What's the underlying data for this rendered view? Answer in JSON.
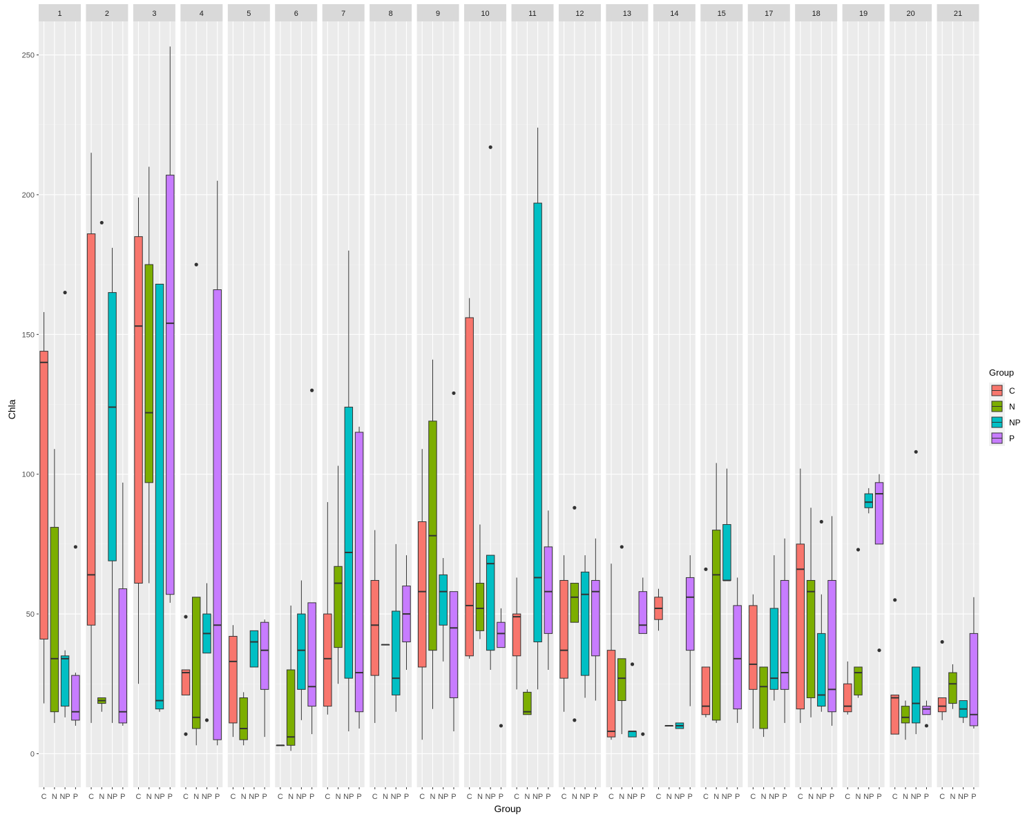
{
  "chart_data": {
    "type": "boxplot",
    "facet_by": "panel",
    "xlabel": "Group",
    "ylabel": "Chla",
    "ylim": [
      -12,
      262
    ],
    "y_ticks": [
      0,
      50,
      100,
      150,
      200,
      250
    ],
    "categories": [
      "C",
      "N",
      "NP",
      "P"
    ],
    "legend": {
      "title": "Group",
      "placement": "right",
      "items": [
        {
          "label": "C",
          "color": "#F8766D"
        },
        {
          "label": "N",
          "color": "#7CAE00"
        },
        {
          "label": "NP",
          "color": "#00BFC4"
        },
        {
          "label": "P",
          "color": "#C77CFF"
        }
      ]
    },
    "panels": [
      {
        "label": "1",
        "boxes": [
          {
            "group": "C",
            "lower": 18,
            "q1": 41,
            "median": 140,
            "q3": 144,
            "upper": 158,
            "outliers": []
          },
          {
            "group": "N",
            "lower": 11,
            "q1": 15,
            "median": 34,
            "q3": 81,
            "upper": 109,
            "outliers": []
          },
          {
            "group": "NP",
            "lower": 13,
            "q1": 17,
            "median": 34,
            "q3": 35,
            "upper": 37,
            "outliers": [
              165
            ]
          },
          {
            "group": "P",
            "lower": 10,
            "q1": 12,
            "median": 15,
            "q3": 28,
            "upper": 29,
            "outliers": [
              74
            ]
          }
        ]
      },
      {
        "label": "2",
        "boxes": [
          {
            "group": "C",
            "lower": 11,
            "q1": 46,
            "median": 64,
            "q3": 186,
            "upper": 215,
            "outliers": []
          },
          {
            "group": "N",
            "lower": 15,
            "q1": 18,
            "median": 19,
            "q3": 20,
            "upper": 20,
            "outliers": [
              190
            ]
          },
          {
            "group": "NP",
            "lower": 11,
            "q1": 69,
            "median": 124,
            "q3": 165,
            "upper": 181,
            "outliers": []
          },
          {
            "group": "P",
            "lower": 10,
            "q1": 11,
            "median": 15,
            "q3": 59,
            "upper": 97,
            "outliers": []
          }
        ]
      },
      {
        "label": "3",
        "boxes": [
          {
            "group": "C",
            "lower": 25,
            "q1": 61,
            "median": 153,
            "q3": 185,
            "upper": 199,
            "outliers": []
          },
          {
            "group": "N",
            "lower": 61,
            "q1": 97,
            "median": 122,
            "q3": 175,
            "upper": 210,
            "outliers": []
          },
          {
            "group": "NP",
            "lower": 15,
            "q1": 16,
            "median": 19,
            "q3": 168,
            "upper": 168,
            "outliers": []
          },
          {
            "group": "P",
            "lower": 54,
            "q1": 57,
            "median": 154,
            "q3": 207,
            "upper": 253,
            "outliers": []
          }
        ]
      },
      {
        "label": "4",
        "boxes": [
          {
            "group": "C",
            "lower": 21,
            "q1": 21,
            "median": 29,
            "q3": 30,
            "upper": 30,
            "outliers": [
              49,
              7
            ]
          },
          {
            "group": "N",
            "lower": 3,
            "q1": 9,
            "median": 13,
            "q3": 56,
            "upper": 56,
            "outliers": [
              175
            ]
          },
          {
            "group": "NP",
            "lower": 36,
            "q1": 36,
            "median": 43,
            "q3": 50,
            "upper": 61,
            "outliers": [
              12
            ]
          },
          {
            "group": "P",
            "lower": 3,
            "q1": 5,
            "median": 46,
            "q3": 166,
            "upper": 205,
            "outliers": []
          }
        ]
      },
      {
        "label": "5",
        "boxes": [
          {
            "group": "C",
            "lower": 6,
            "q1": 11,
            "median": 33,
            "q3": 42,
            "upper": 46,
            "outliers": []
          },
          {
            "group": "N",
            "lower": 3,
            "q1": 5,
            "median": 9,
            "q3": 20,
            "upper": 22,
            "outliers": []
          },
          {
            "group": "NP",
            "lower": 31,
            "q1": 31,
            "median": 40,
            "q3": 44,
            "upper": 44,
            "outliers": []
          },
          {
            "group": "P",
            "lower": 6,
            "q1": 23,
            "median": 37,
            "q3": 47,
            "upper": 48,
            "outliers": []
          }
        ]
      },
      {
        "label": "6",
        "boxes": [
          {
            "group": "C",
            "lower": 3,
            "q1": 3,
            "median": 3,
            "q3": 3,
            "upper": 3,
            "outliers": []
          },
          {
            "group": "N",
            "lower": 1,
            "q1": 3,
            "median": 6,
            "q3": 30,
            "upper": 53,
            "outliers": []
          },
          {
            "group": "NP",
            "lower": 12,
            "q1": 23,
            "median": 37,
            "q3": 50,
            "upper": 62,
            "outliers": []
          },
          {
            "group": "P",
            "lower": 7,
            "q1": 17,
            "median": 24,
            "q3": 54,
            "upper": 54,
            "outliers": [
              130
            ]
          }
        ]
      },
      {
        "label": "7",
        "boxes": [
          {
            "group": "C",
            "lower": 14,
            "q1": 17,
            "median": 34,
            "q3": 50,
            "upper": 90,
            "outliers": []
          },
          {
            "group": "N",
            "lower": 25,
            "q1": 38,
            "median": 61,
            "q3": 67,
            "upper": 103,
            "outliers": []
          },
          {
            "group": "NP",
            "lower": 8,
            "q1": 27,
            "median": 72,
            "q3": 124,
            "upper": 180,
            "outliers": []
          },
          {
            "group": "P",
            "lower": 9,
            "q1": 15,
            "median": 29,
            "q3": 115,
            "upper": 117,
            "outliers": []
          }
        ]
      },
      {
        "label": "8",
        "boxes": [
          {
            "group": "C",
            "lower": 11,
            "q1": 28,
            "median": 46,
            "q3": 62,
            "upper": 80,
            "outliers": []
          },
          {
            "group": "N",
            "lower": 39,
            "q1": 39,
            "median": 39,
            "q3": 39,
            "upper": 39,
            "outliers": []
          },
          {
            "group": "NP",
            "lower": 15,
            "q1": 21,
            "median": 27,
            "q3": 51,
            "upper": 75,
            "outliers": []
          },
          {
            "group": "P",
            "lower": 30,
            "q1": 40,
            "median": 50,
            "q3": 60,
            "upper": 71,
            "outliers": []
          }
        ]
      },
      {
        "label": "9",
        "boxes": [
          {
            "group": "C",
            "lower": 5,
            "q1": 31,
            "median": 58,
            "q3": 83,
            "upper": 109,
            "outliers": []
          },
          {
            "group": "N",
            "lower": 16,
            "q1": 37,
            "median": 78,
            "q3": 119,
            "upper": 141,
            "outliers": []
          },
          {
            "group": "NP",
            "lower": 33,
            "q1": 46,
            "median": 58,
            "q3": 64,
            "upper": 70,
            "outliers": []
          },
          {
            "group": "P",
            "lower": 8,
            "q1": 20,
            "median": 45,
            "q3": 58,
            "upper": 58,
            "outliers": [
              129
            ]
          }
        ]
      },
      {
        "label": "10",
        "boxes": [
          {
            "group": "C",
            "lower": 34,
            "q1": 35,
            "median": 53,
            "q3": 156,
            "upper": 163,
            "outliers": []
          },
          {
            "group": "N",
            "lower": 41,
            "q1": 44,
            "median": 52,
            "q3": 61,
            "upper": 82,
            "outliers": []
          },
          {
            "group": "NP",
            "lower": 30,
            "q1": 37,
            "median": 68,
            "q3": 71,
            "upper": 71,
            "outliers": [
              217
            ]
          },
          {
            "group": "P",
            "lower": 38,
            "q1": 38,
            "median": 43,
            "q3": 47,
            "upper": 52,
            "outliers": [
              10
            ]
          }
        ]
      },
      {
        "label": "11",
        "boxes": [
          {
            "group": "C",
            "lower": 23,
            "q1": 35,
            "median": 49,
            "q3": 50,
            "upper": 63,
            "outliers": []
          },
          {
            "group": "N",
            "lower": 14,
            "q1": 14,
            "median": 15,
            "q3": 22,
            "upper": 23,
            "outliers": []
          },
          {
            "group": "NP",
            "lower": 23,
            "q1": 40,
            "median": 63,
            "q3": 197,
            "upper": 224,
            "outliers": []
          },
          {
            "group": "P",
            "lower": 30,
            "q1": 43,
            "median": 58,
            "q3": 74,
            "upper": 87,
            "outliers": []
          }
        ]
      },
      {
        "label": "12",
        "boxes": [
          {
            "group": "C",
            "lower": 15,
            "q1": 27,
            "median": 37,
            "q3": 62,
            "upper": 71,
            "outliers": []
          },
          {
            "group": "N",
            "lower": 47,
            "q1": 47,
            "median": 56,
            "q3": 61,
            "upper": 61,
            "outliers": [
              88,
              12
            ]
          },
          {
            "group": "NP",
            "lower": 20,
            "q1": 28,
            "median": 57,
            "q3": 65,
            "upper": 71,
            "outliers": []
          },
          {
            "group": "P",
            "lower": 19,
            "q1": 35,
            "median": 58,
            "q3": 62,
            "upper": 77,
            "outliers": []
          }
        ]
      },
      {
        "label": "13",
        "boxes": [
          {
            "group": "C",
            "lower": 5,
            "q1": 6,
            "median": 8,
            "q3": 37,
            "upper": 68,
            "outliers": []
          },
          {
            "group": "N",
            "lower": 7,
            "q1": 19,
            "median": 27,
            "q3": 34,
            "upper": 34,
            "outliers": [
              74
            ]
          },
          {
            "group": "NP",
            "lower": 6,
            "q1": 6,
            "median": 8,
            "q3": 8,
            "upper": 8,
            "outliers": [
              32
            ]
          },
          {
            "group": "P",
            "lower": 43,
            "q1": 43,
            "median": 46,
            "q3": 58,
            "upper": 63,
            "outliers": [
              7
            ]
          }
        ]
      },
      {
        "label": "14",
        "boxes": [
          {
            "group": "C",
            "lower": 44,
            "q1": 48,
            "median": 52,
            "q3": 56,
            "upper": 59,
            "outliers": []
          },
          {
            "group": "N",
            "lower": 10,
            "q1": 10,
            "median": 10,
            "q3": 10,
            "upper": 10,
            "outliers": []
          },
          {
            "group": "NP",
            "lower": 9,
            "q1": 9,
            "median": 10,
            "q3": 11,
            "upper": 11,
            "outliers": []
          },
          {
            "group": "P",
            "lower": 17,
            "q1": 37,
            "median": 56,
            "q3": 63,
            "upper": 71,
            "outliers": []
          }
        ]
      },
      {
        "label": "15",
        "boxes": [
          {
            "group": "C",
            "lower": 13,
            "q1": 14,
            "median": 17,
            "q3": 31,
            "upper": 31,
            "outliers": [
              66
            ]
          },
          {
            "group": "N",
            "lower": 11,
            "q1": 12,
            "median": 64,
            "q3": 80,
            "upper": 104,
            "outliers": []
          },
          {
            "group": "NP",
            "lower": 62,
            "q1": 62,
            "median": 62,
            "q3": 82,
            "upper": 102,
            "outliers": []
          },
          {
            "group": "P",
            "lower": 11,
            "q1": 16,
            "median": 34,
            "q3": 53,
            "upper": 63,
            "outliers": []
          }
        ]
      },
      {
        "label": "17",
        "boxes": [
          {
            "group": "C",
            "lower": 9,
            "q1": 23,
            "median": 32,
            "q3": 53,
            "upper": 57,
            "outliers": []
          },
          {
            "group": "N",
            "lower": 6,
            "q1": 9,
            "median": 24,
            "q3": 31,
            "upper": 31,
            "outliers": []
          },
          {
            "group": "NP",
            "lower": 19,
            "q1": 23,
            "median": 27,
            "q3": 52,
            "upper": 71,
            "outliers": []
          },
          {
            "group": "P",
            "lower": 11,
            "q1": 23,
            "median": 29,
            "q3": 62,
            "upper": 77,
            "outliers": []
          }
        ]
      },
      {
        "label": "18",
        "boxes": [
          {
            "group": "C",
            "lower": 11,
            "q1": 16,
            "median": 66,
            "q3": 75,
            "upper": 102,
            "outliers": []
          },
          {
            "group": "N",
            "lower": 13,
            "q1": 20,
            "median": 58,
            "q3": 62,
            "upper": 88,
            "outliers": []
          },
          {
            "group": "NP",
            "lower": 15,
            "q1": 17,
            "median": 21,
            "q3": 43,
            "upper": 57,
            "outliers": [
              83
            ]
          },
          {
            "group": "P",
            "lower": 10,
            "q1": 15,
            "median": 23,
            "q3": 62,
            "upper": 85,
            "outliers": []
          }
        ]
      },
      {
        "label": "19",
        "boxes": [
          {
            "group": "C",
            "lower": 14,
            "q1": 15,
            "median": 17,
            "q3": 25,
            "upper": 33,
            "outliers": []
          },
          {
            "group": "N",
            "lower": 20,
            "q1": 21,
            "median": 29,
            "q3": 31,
            "upper": 31,
            "outliers": [
              73
            ]
          },
          {
            "group": "NP",
            "lower": 86,
            "q1": 88,
            "median": 90,
            "q3": 93,
            "upper": 95,
            "outliers": []
          },
          {
            "group": "P",
            "lower": 75,
            "q1": 75,
            "median": 93,
            "q3": 97,
            "upper": 100,
            "outliers": [
              37
            ]
          }
        ]
      },
      {
        "label": "20",
        "boxes": [
          {
            "group": "C",
            "lower": 7,
            "q1": 7,
            "median": 20,
            "q3": 21,
            "upper": 21,
            "outliers": [
              55
            ]
          },
          {
            "group": "N",
            "lower": 5,
            "q1": 11,
            "median": 13,
            "q3": 17,
            "upper": 19,
            "outliers": []
          },
          {
            "group": "NP",
            "lower": 7,
            "q1": 11,
            "median": 18,
            "q3": 31,
            "upper": 31,
            "outliers": [
              108
            ]
          },
          {
            "group": "P",
            "lower": 14,
            "q1": 14,
            "median": 16,
            "q3": 17,
            "upper": 19,
            "outliers": [
              10
            ]
          }
        ]
      },
      {
        "label": "21",
        "boxes": [
          {
            "group": "C",
            "lower": 12,
            "q1": 15,
            "median": 17,
            "q3": 20,
            "upper": 20,
            "outliers": [
              40
            ]
          },
          {
            "group": "N",
            "lower": 16,
            "q1": 18,
            "median": 25,
            "q3": 29,
            "upper": 32,
            "outliers": []
          },
          {
            "group": "NP",
            "lower": 11,
            "q1": 13,
            "median": 16,
            "q3": 19,
            "upper": 19,
            "outliers": []
          },
          {
            "group": "P",
            "lower": 9,
            "q1": 10,
            "median": 14,
            "q3": 43,
            "upper": 56,
            "outliers": []
          }
        ]
      }
    ]
  }
}
